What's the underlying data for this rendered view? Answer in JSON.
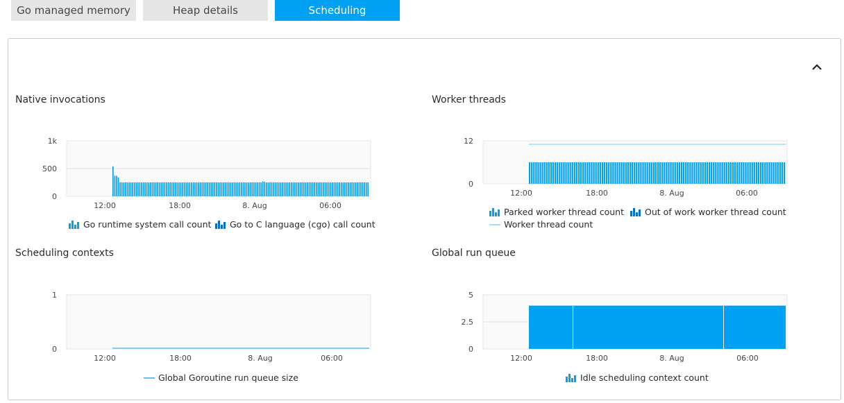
{
  "tabs": [
    {
      "label": "Go managed memory",
      "active": false
    },
    {
      "label": "Heap details",
      "active": false
    },
    {
      "label": "Scheduling",
      "active": true
    }
  ],
  "colors": {
    "accent": "#00a1f2",
    "bar_light": "#00a1f2",
    "bar_dark": "#0b6fc0",
    "line_light": "#a7dcf7",
    "tab_inactive": "#e6e6e6",
    "panel_border": "#c9c9c9"
  },
  "panel": {
    "collapse_icon": "chevron-up-icon"
  },
  "charts": {
    "native": {
      "title": "Native invocations",
      "legend": [
        "Go runtime system call count",
        "Go to C language (cgo) call count"
      ]
    },
    "worker": {
      "title": "Worker threads",
      "legend": [
        "Parked worker thread count",
        "Out of work worker thread count",
        "Worker thread count"
      ]
    },
    "contexts": {
      "title": "Scheduling contexts",
      "legend": [
        "Global Goroutine run queue size"
      ]
    },
    "runqueue": {
      "title": "Global run queue",
      "legend": [
        "Idle scheduling context count"
      ]
    }
  },
  "chart_data": [
    {
      "id": "native",
      "type": "bar",
      "title": "Native invocations",
      "x_ticks": [
        "12:00",
        "18:00",
        "8. Aug",
        "06:00"
      ],
      "y_ticks": [
        "1k",
        "500",
        "0"
      ],
      "ylim": [
        0,
        1000
      ],
      "series": [
        {
          "name": "Go runtime system call count",
          "values": [
            540,
            370,
            370,
            340,
            250,
            250,
            250,
            250,
            250,
            250,
            250,
            250,
            250,
            250,
            250,
            250,
            250,
            250,
            250,
            250,
            250,
            250,
            250,
            250,
            250,
            250,
            250,
            250,
            250,
            250,
            250,
            250,
            250,
            250,
            250,
            250,
            250,
            250,
            250,
            250,
            250,
            250,
            250,
            250,
            250,
            250,
            250,
            250,
            250,
            250,
            250,
            250,
            250,
            250,
            250,
            250,
            250,
            250,
            250,
            250,
            250,
            250,
            250,
            250,
            250,
            250,
            250,
            250,
            250,
            250,
            250,
            250,
            250,
            250,
            250,
            250,
            250,
            250,
            250,
            250,
            250,
            250,
            250,
            250,
            270,
            260,
            250,
            250,
            250,
            250,
            250,
            250,
            250,
            250,
            250,
            250,
            250,
            250,
            250,
            250,
            250,
            250,
            250,
            250,
            250,
            250,
            250,
            250,
            250,
            250,
            250,
            250,
            250,
            250,
            250,
            250,
            250,
            250,
            250,
            250,
            250,
            250,
            250,
            250,
            250,
            250,
            250,
            250,
            250,
            250,
            250,
            250,
            250,
            250,
            250,
            250,
            250,
            250,
            250,
            250,
            250,
            250,
            250,
            250
          ]
        },
        {
          "name": "Go to C language (cgo) call count",
          "values": []
        }
      ],
      "grid": true
    },
    {
      "id": "worker",
      "type": "bar",
      "title": "Worker threads",
      "x_ticks": [
        "12:00",
        "18:00",
        "8. Aug",
        "06:00"
      ],
      "y_ticks": [
        "12",
        "0"
      ],
      "ylim": [
        0,
        12
      ],
      "series": [
        {
          "name": "Parked worker thread count",
          "values": []
        },
        {
          "name": "Out of work worker thread count",
          "values_const": 6,
          "count": 120
        },
        {
          "name": "Worker thread count",
          "line_const": 11
        }
      ],
      "grid": true
    },
    {
      "id": "contexts",
      "type": "line",
      "title": "Scheduling contexts",
      "x_ticks": [
        "12:00",
        "18:00",
        "8. Aug",
        "06:00"
      ],
      "y_ticks": [
        "1",
        "0"
      ],
      "ylim": [
        0,
        1
      ],
      "series": [
        {
          "name": "Global Goroutine run queue size",
          "line_const": 0
        }
      ],
      "grid": true
    },
    {
      "id": "runqueue",
      "type": "bar",
      "title": "Global run queue",
      "x_ticks": [
        "12:00",
        "18:00",
        "8. Aug",
        "06:00"
      ],
      "y_ticks": [
        "5",
        "2.5",
        "0"
      ],
      "ylim": [
        0,
        5
      ],
      "series": [
        {
          "name": "Idle scheduling context count",
          "values": [
            4,
            4,
            4
          ]
        }
      ],
      "grid": true
    }
  ]
}
